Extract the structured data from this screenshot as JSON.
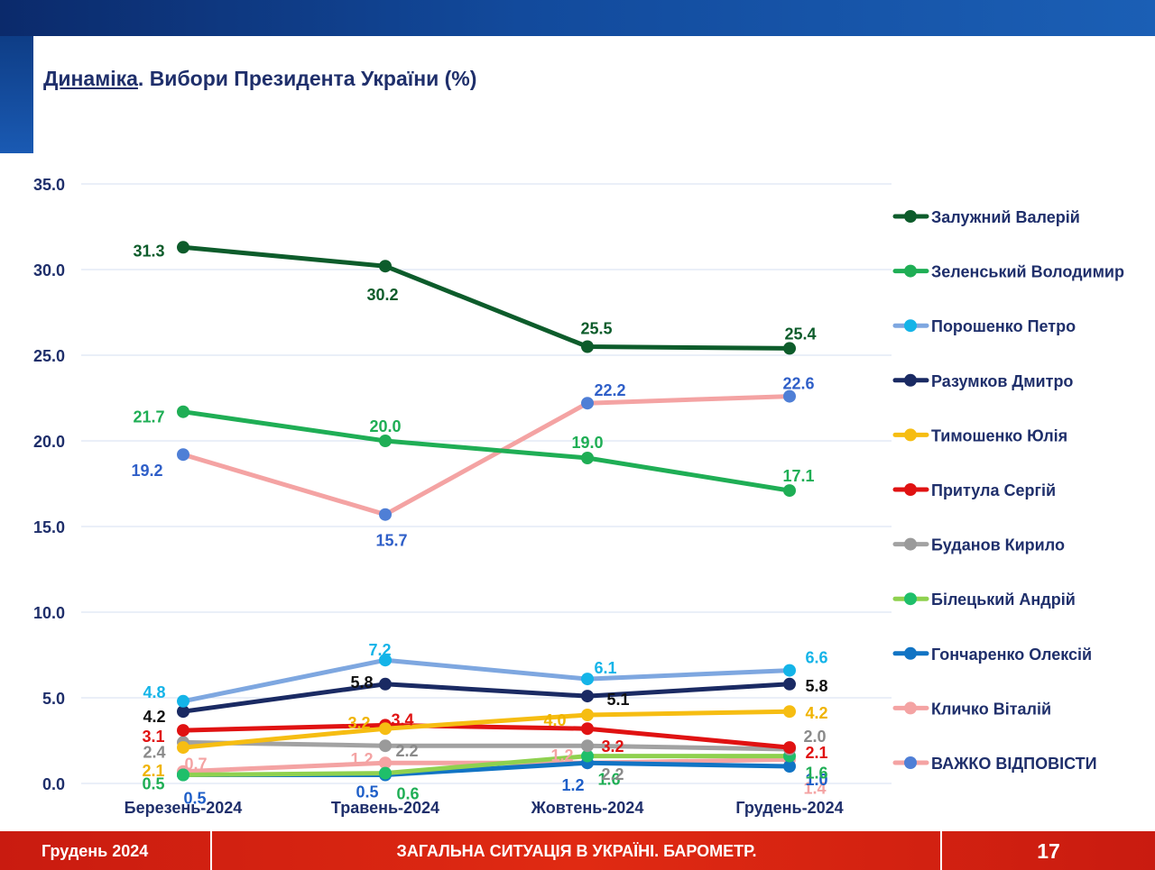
{
  "title": {
    "underlined": "Динаміка",
    "rest": ". Вибори Президента України (%)"
  },
  "footer": {
    "left": "Грудень 2024",
    "center": "ЗАГАЛЬНА СИТУАЦІЯ В УКРАЇНІ. БАРОМЕТР.",
    "page": "17"
  },
  "chart_data": {
    "type": "line",
    "title": "Динаміка. Вибори Президента України (%)",
    "xlabel": "",
    "ylabel": "",
    "ylim": [
      0,
      35
    ],
    "yticks": [
      "0.0",
      "5.0",
      "10.0",
      "15.0",
      "20.0",
      "25.0",
      "30.0",
      "35.0"
    ],
    "categories": [
      "Березень-2024",
      "Травень-2024",
      "Жовтень-2024",
      "Грудень-2024"
    ],
    "grid": true,
    "legend_position": "right",
    "series": [
      {
        "name": "Залужний Валерій",
        "line_color": "#0d5c2b",
        "marker_color": "#0d5c2b",
        "label_color": "#0d5c2b",
        "values": [
          31.3,
          30.2,
          25.5,
          25.4
        ],
        "labels": [
          "31.3",
          "30.2",
          "25.5",
          "25.4"
        ]
      },
      {
        "name": "Зеленський Володимир",
        "line_color": "#1fae55",
        "marker_color": "#1fae55",
        "label_color": "#1fae55",
        "values": [
          21.7,
          20.0,
          19.0,
          17.1
        ],
        "labels": [
          "21.7",
          "20.0",
          "19.0",
          "17.1"
        ]
      },
      {
        "name": "Порошенко Петро",
        "line_color": "#7ea7e0",
        "marker_color": "#14b4e8",
        "label_color": "#14b4e8",
        "values": [
          4.8,
          7.2,
          6.1,
          6.6
        ],
        "labels": [
          "4.8",
          "7.2",
          "6.1",
          "6.6"
        ]
      },
      {
        "name": "Разумков Дмитро",
        "line_color": "#1a2a63",
        "marker_color": "#1a2a63",
        "label_color": "#111111",
        "values": [
          4.2,
          5.8,
          5.1,
          5.8
        ],
        "labels": [
          "4.2",
          "5.8",
          "5.1",
          "5.8"
        ]
      },
      {
        "name": "Тимошенко Юлія",
        "line_color": "#f6bd12",
        "marker_color": "#f6bd12",
        "label_color": "#f0b400",
        "values": [
          2.1,
          3.2,
          4.0,
          4.2
        ],
        "labels": [
          "2.1",
          "3.2",
          "4.0",
          "4.2"
        ]
      },
      {
        "name": "Притула Сергій",
        "line_color": "#e01212",
        "marker_color": "#e01212",
        "label_color": "#e01212",
        "values": [
          3.1,
          3.4,
          3.2,
          2.1
        ],
        "labels": [
          "3.1",
          "3.4",
          "3.2",
          "2.1"
        ]
      },
      {
        "name": "Буданов Кирило",
        "line_color": "#a2a2a2",
        "marker_color": "#9a9a9a",
        "label_color": "#8a8a8a",
        "values": [
          2.4,
          2.2,
          2.2,
          2.0
        ],
        "labels": [
          "2.4",
          "2.2",
          "2.2",
          "2.0"
        ]
      },
      {
        "name": "Білецький Андрій",
        "line_color": "#8fd14f",
        "marker_color": "#1fbf6a",
        "label_color": "#1fae55",
        "values": [
          0.5,
          0.6,
          1.6,
          1.6
        ],
        "labels": [
          "0.5",
          "0.6",
          "1.6",
          "1.6"
        ]
      },
      {
        "name": "Гончаренко Олексій",
        "line_color": "#1174c4",
        "marker_color": "#1174c4",
        "label_color": "#1f5fc8",
        "values": [
          0.5,
          0.5,
          1.2,
          1.0
        ],
        "labels": [
          "0.5",
          "0.5",
          "1.2",
          "1.0"
        ]
      },
      {
        "name": "Кличко Віталій",
        "line_color": "#f4a3a3",
        "marker_color": "#f4a3a3",
        "label_color": "#f4a3a3",
        "values": [
          0.7,
          1.2,
          1.2,
          1.4
        ],
        "labels": [
          "0.7",
          "1.2",
          "1.2",
          "1.4"
        ]
      },
      {
        "name": "ВАЖКО ВІДПОВІСТИ",
        "line_color": "#f4a3a3",
        "marker_color": "#4f7fd6",
        "label_color": "#2f5fc8",
        "values": [
          19.2,
          15.7,
          22.2,
          22.6
        ],
        "labels": [
          "19.2",
          "15.7",
          "22.2",
          "22.6"
        ]
      }
    ]
  }
}
